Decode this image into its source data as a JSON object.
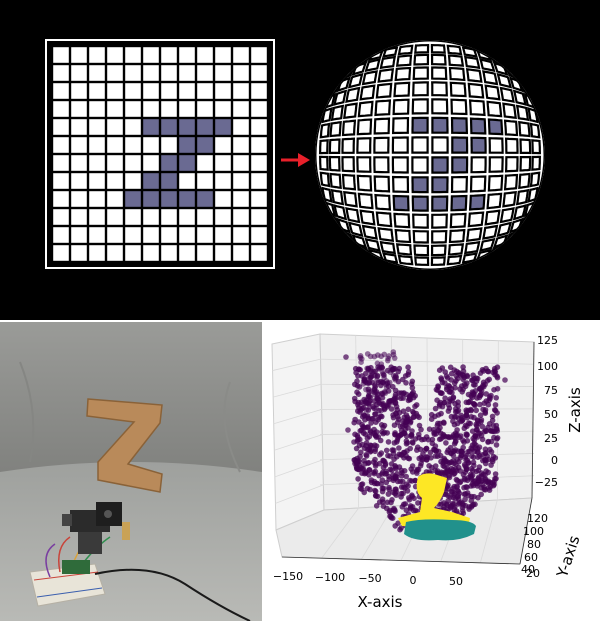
{
  "colors": {
    "grid_fill": "#6a6a92",
    "arrow": "#e8202a",
    "cardboard": "#b98a5a",
    "cluster_purple": "#440154",
    "cluster_yellow": "#fde725",
    "cluster_teal": "#21918c"
  },
  "flat_grid": {
    "rows": 12,
    "cols": 12
  },
  "plot": {
    "x_axis_label": "X-axis",
    "y_axis_label": "Y-axis",
    "z_axis_label": "Z-axis",
    "x_ticks": [
      "−150",
      "−100",
      "−50",
      "0",
      "50"
    ],
    "y_ticks": [
      "20",
      "40",
      "60",
      "80",
      "100",
      "120"
    ],
    "z_ticks": [
      "125",
      "100",
      "75",
      "50",
      "25",
      "0",
      "−25"
    ]
  }
}
